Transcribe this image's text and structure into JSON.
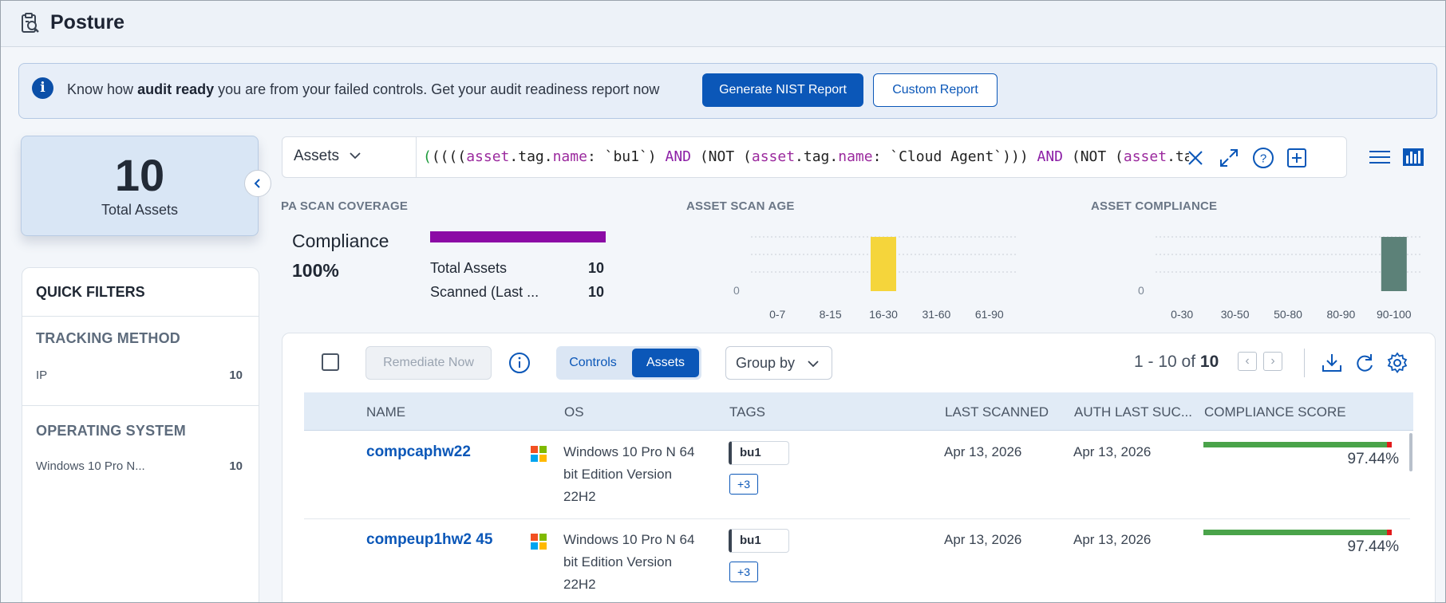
{
  "header": {
    "title": "Posture",
    "icon": "audit-report-icon"
  },
  "banner": {
    "prefix": "Know how ",
    "emphasis": "audit ready",
    "suffix": " you are from your failed controls. Get your audit readiness report now",
    "primary_button": "Generate NIST Report",
    "secondary_button": "Custom Report"
  },
  "summary": {
    "total": "10",
    "label": "Total Assets"
  },
  "quick_filters": {
    "title": "QUICK FILTERS",
    "sections": [
      {
        "title": "TRACKING METHOD",
        "items": [
          {
            "label": "IP",
            "count": "10"
          }
        ]
      },
      {
        "title": "OPERATING SYSTEM",
        "items": [
          {
            "label": "Windows 10 Pro N...",
            "count": "10"
          }
        ]
      }
    ]
  },
  "query": {
    "scope": "Assets",
    "text_parts": [
      {
        "t": "(",
        "c": "g"
      },
      {
        "t": "((((",
        "c": ""
      },
      {
        "t": "asset",
        "c": "k"
      },
      {
        "t": ".tag.",
        "c": ""
      },
      {
        "t": "name",
        "c": "k"
      },
      {
        "t": ": `bu1`) ",
        "c": ""
      },
      {
        "t": "AND",
        "c": "op"
      },
      {
        "t": " (NOT (",
        "c": ""
      },
      {
        "t": "asset",
        "c": "k"
      },
      {
        "t": ".tag.",
        "c": ""
      },
      {
        "t": "name",
        "c": "k"
      },
      {
        "t": ": `Cloud Agent`))) ",
        "c": ""
      },
      {
        "t": "AND",
        "c": "op"
      },
      {
        "t": " (NOT (",
        "c": ""
      },
      {
        "t": "asset",
        "c": "k"
      },
      {
        "t": ".tag.name: `",
        "c": ""
      }
    ]
  },
  "widgets": {
    "coverage": {
      "title": "PA SCAN COVERAGE",
      "label": "Compliance",
      "percent": "100%",
      "fill_fraction": 1.0,
      "rows": [
        {
          "label": "Total Assets",
          "value": "10"
        },
        {
          "label": "Scanned (Last ...",
          "value": "10"
        }
      ]
    },
    "scan_age": {
      "title": "ASSET SCAN AGE"
    },
    "compliance": {
      "title": "ASSET COMPLIANCE"
    }
  },
  "chart_data": [
    {
      "type": "bar",
      "title": "ASSET SCAN AGE",
      "categories": [
        "0-7",
        "8-15",
        "16-30",
        "31-60",
        "61-90"
      ],
      "values": [
        0,
        0,
        10,
        0,
        0
      ],
      "y_tick_label": "0",
      "ylim": [
        0,
        10
      ],
      "color": "#f5d53b",
      "grid": true
    },
    {
      "type": "bar",
      "title": "ASSET COMPLIANCE",
      "categories": [
        "0-30",
        "30-50",
        "50-80",
        "80-90",
        "90-100"
      ],
      "values": [
        0,
        0,
        0,
        0,
        10
      ],
      "y_tick_label": "0",
      "ylim": [
        0,
        10
      ],
      "color": "#5c8178",
      "grid": true
    }
  ],
  "toolbar": {
    "remediate": "Remediate Now",
    "seg_controls": "Controls",
    "seg_assets": "Assets",
    "group_by": "Group by",
    "pager_range": "1 - 10 of",
    "pager_total": "10"
  },
  "table": {
    "columns": [
      "NAME",
      "OS",
      "TAGS",
      "LAST SCANNED",
      "AUTH LAST SUC...",
      "COMPLIANCE SCORE"
    ],
    "rows": [
      {
        "name": "compcaphw22",
        "os": "Windows 10 Pro N 64 bit Edition Version 22H2",
        "tag": "bu1",
        "more_tags": "+3",
        "last_scanned": "Apr 13, 2026",
        "auth_last": "Apr 13, 2026",
        "score": "97.44%",
        "score_value": 97.44
      },
      {
        "name": "compeup1hw2 45",
        "os": "Windows 10 Pro N 64 bit Edition Version 22H2",
        "tag": "bu1",
        "more_tags": "+3",
        "last_scanned": "Apr 13, 2026",
        "auth_last": "Apr 13, 2026",
        "score": "97.44%",
        "score_value": 97.44
      }
    ]
  },
  "colors": {
    "accent": "#0b57b8",
    "coverage": "#8b0aa5"
  }
}
